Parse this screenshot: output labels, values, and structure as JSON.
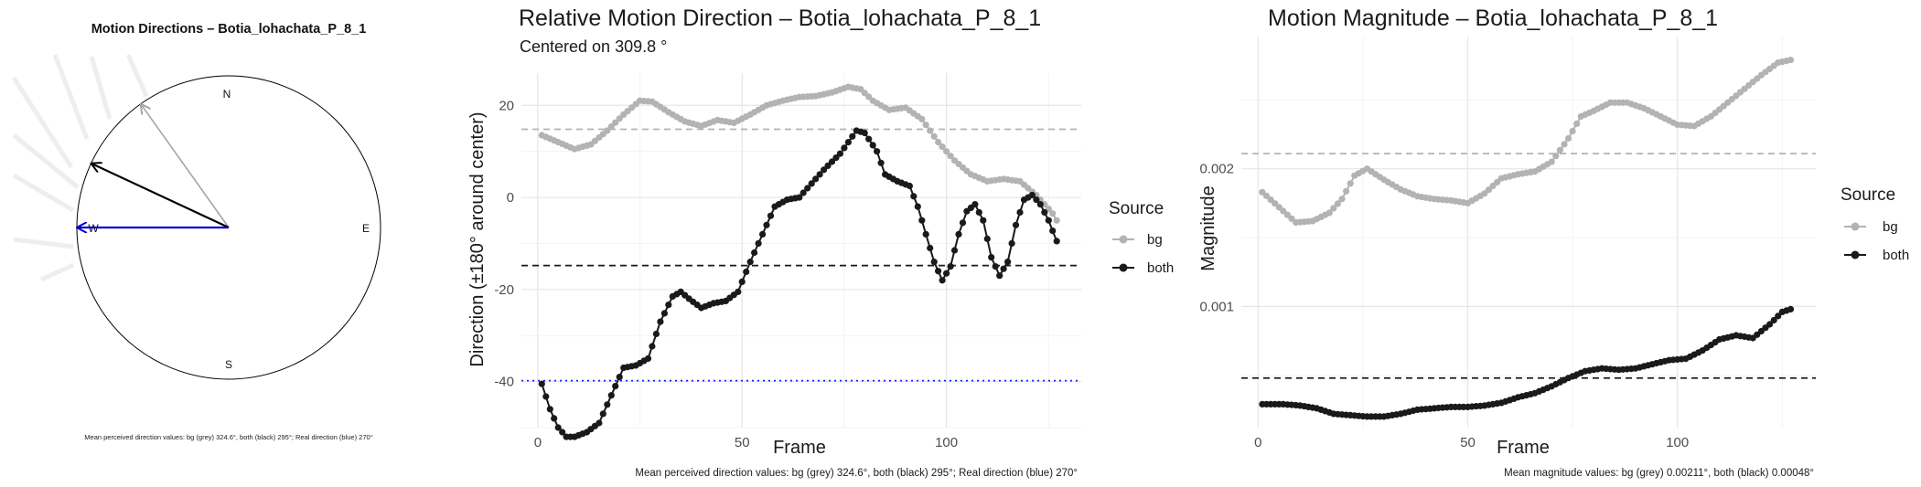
{
  "colors": {
    "bg": "#b3b3b3",
    "both": "#1a1a1a",
    "real": "#0000cc",
    "grid": "#ebebeb"
  },
  "compass": {
    "title": "Motion Directions – Botia_lohachata_P_8_1",
    "cardinals": {
      "north": "N",
      "east": "E",
      "south": "S",
      "west": "W"
    },
    "arrows": [
      {
        "name": "bg",
        "direction_deg": 324.6,
        "color": "#a6a6a6"
      },
      {
        "name": "both",
        "direction_deg": 295,
        "color": "#000000"
      },
      {
        "name": "real",
        "direction_deg": 270,
        "color": "#0000cc"
      }
    ],
    "caption": "Mean perceived direction values: bg (grey) 324.6°, both (black) 295°; Real direction (blue) 270°"
  },
  "chart_data": [
    {
      "type": "line",
      "title": "Relative Motion Direction – Botia_lohachata_P_8_1",
      "subtitle": "Centered on  309.8 °",
      "xlabel": "Frame",
      "ylabel": "Direction (±180° around center)",
      "xlim": [
        -4,
        133
      ],
      "ylim": [
        -50,
        27
      ],
      "xticks": [
        0,
        50,
        100
      ],
      "yticks": [
        -40,
        -20,
        0,
        20
      ],
      "grid": true,
      "legend": {
        "title": "Source",
        "position": "right",
        "entries": [
          "bg",
          "both"
        ]
      },
      "hlines": [
        {
          "series": "bg",
          "y": 14.8,
          "style": "dashed"
        },
        {
          "series": "both",
          "y": -14.8,
          "style": "dashed"
        },
        {
          "series": "real",
          "y": -39.8,
          "style": "dotted"
        }
      ],
      "series": [
        {
          "name": "bg",
          "points": [
            [
              1,
              13.5
            ],
            [
              5,
              12
            ],
            [
              9,
              10.5
            ],
            [
              13,
              11.5
            ],
            [
              17,
              14.5
            ],
            [
              21,
              18
            ],
            [
              25,
              21
            ],
            [
              28,
              20.8
            ],
            [
              32,
              18.5
            ],
            [
              36,
              16.5
            ],
            [
              40,
              15.5
            ],
            [
              44,
              16.8
            ],
            [
              48,
              16.2
            ],
            [
              52,
              18
            ],
            [
              56,
              20
            ],
            [
              60,
              21
            ],
            [
              64,
              21.8
            ],
            [
              68,
              22
            ],
            [
              72,
              22.8
            ],
            [
              76,
              24
            ],
            [
              79,
              23.5
            ],
            [
              82,
              21
            ],
            [
              86,
              19
            ],
            [
              90,
              19.5
            ],
            [
              94,
              17
            ],
            [
              98,
              12
            ],
            [
              102,
              8
            ],
            [
              106,
              5
            ],
            [
              110,
              3.5
            ],
            [
              114,
              4
            ],
            [
              118,
              3.5
            ],
            [
              122,
              0.5
            ],
            [
              126,
              -3.5
            ],
            [
              127,
              -5
            ]
          ]
        },
        {
          "name": "both",
          "points": [
            [
              1,
              -40.5
            ],
            [
              3,
              -46
            ],
            [
              5,
              -50
            ],
            [
              7,
              -52
            ],
            [
              9,
              -52
            ],
            [
              12,
              -51
            ],
            [
              15,
              -49
            ],
            [
              18,
              -43
            ],
            [
              21,
              -37
            ],
            [
              24,
              -36.5
            ],
            [
              27,
              -35
            ],
            [
              30,
              -27
            ],
            [
              33,
              -21.5
            ],
            [
              35,
              -20.5
            ],
            [
              37,
              -22
            ],
            [
              40,
              -24
            ],
            [
              43,
              -23
            ],
            [
              46,
              -22.5
            ],
            [
              49,
              -20.5
            ],
            [
              52,
              -14
            ],
            [
              55,
              -8
            ],
            [
              58,
              -2
            ],
            [
              61,
              -0.5
            ],
            [
              64,
              0
            ],
            [
              67,
              3
            ],
            [
              70,
              6
            ],
            [
              74,
              9.5
            ],
            [
              78,
              14.5
            ],
            [
              80,
              14
            ],
            [
              83,
              10
            ],
            [
              85,
              5
            ],
            [
              88,
              3.5
            ],
            [
              91,
              2.5
            ],
            [
              93,
              -2
            ],
            [
              95,
              -8
            ],
            [
              97,
              -14
            ],
            [
              99,
              -18
            ],
            [
              101,
              -15
            ],
            [
              103,
              -8
            ],
            [
              105,
              -3
            ],
            [
              107,
              -1.5
            ],
            [
              109,
              -5
            ],
            [
              111,
              -13
            ],
            [
              113,
              -17
            ],
            [
              115,
              -14
            ],
            [
              117,
              -6
            ],
            [
              119,
              -0.5
            ],
            [
              121,
              0.5
            ],
            [
              123,
              -1.5
            ],
            [
              125,
              -5
            ],
            [
              127,
              -9.5
            ]
          ]
        }
      ],
      "caption": "Mean perceived direction values: bg (grey) 324.6°, both (black) 295°; Real direction (blue) 270°"
    },
    {
      "type": "line",
      "title": "Motion Magnitude – Botia_lohachata_P_8_1",
      "xlabel": "Frame",
      "ylabel": "Magnitude",
      "xlim": [
        -4,
        133
      ],
      "ylim": [
        0.00012,
        0.00296
      ],
      "xticks": [
        0,
        50,
        100
      ],
      "yticks": [
        0.001,
        0.002
      ],
      "ytick_labels": [
        "0.001",
        "0.002"
      ],
      "grid": true,
      "legend": {
        "title": "Source",
        "position": "right",
        "entries": [
          "bg",
          "both"
        ]
      },
      "hlines": [
        {
          "series": "bg",
          "y": 0.00211,
          "style": "dashed"
        },
        {
          "series": "both",
          "y": 0.00048,
          "style": "dashed"
        }
      ],
      "series": [
        {
          "name": "bg",
          "points": [
            [
              1,
              0.00183
            ],
            [
              5,
              0.00172
            ],
            [
              9,
              0.00161
            ],
            [
              13,
              0.00162
            ],
            [
              17,
              0.00168
            ],
            [
              20,
              0.00178
            ],
            [
              23,
              0.00195
            ],
            [
              26,
              0.002
            ],
            [
              30,
              0.00192
            ],
            [
              34,
              0.00185
            ],
            [
              38,
              0.0018
            ],
            [
              42,
              0.00178
            ],
            [
              46,
              0.00177
            ],
            [
              50,
              0.00175
            ],
            [
              54,
              0.00182
            ],
            [
              58,
              0.00193
            ],
            [
              62,
              0.00196
            ],
            [
              66,
              0.00198
            ],
            [
              70,
              0.00205
            ],
            [
              74,
              0.00222
            ],
            [
              77,
              0.00238
            ],
            [
              80,
              0.00242
            ],
            [
              84,
              0.00248
            ],
            [
              88,
              0.00248
            ],
            [
              92,
              0.00244
            ],
            [
              96,
              0.00238
            ],
            [
              100,
              0.00232
            ],
            [
              104,
              0.00231
            ],
            [
              108,
              0.00238
            ],
            [
              112,
              0.00248
            ],
            [
              116,
              0.00258
            ],
            [
              120,
              0.00268
            ],
            [
              124,
              0.00277
            ],
            [
              127,
              0.00279
            ]
          ]
        },
        {
          "name": "both",
          "points": [
            [
              1,
              0.00029
            ],
            [
              6,
              0.00029
            ],
            [
              10,
              0.00028
            ],
            [
              14,
              0.00026
            ],
            [
              18,
              0.00022
            ],
            [
              22,
              0.00021
            ],
            [
              26,
              0.0002
            ],
            [
              30,
              0.0002
            ],
            [
              34,
              0.00022
            ],
            [
              38,
              0.00025
            ],
            [
              42,
              0.00026
            ],
            [
              46,
              0.00027
            ],
            [
              50,
              0.00027
            ],
            [
              54,
              0.00028
            ],
            [
              58,
              0.0003
            ],
            [
              62,
              0.00034
            ],
            [
              66,
              0.00037
            ],
            [
              70,
              0.00042
            ],
            [
              74,
              0.00048
            ],
            [
              78,
              0.00053
            ],
            [
              82,
              0.00055
            ],
            [
              86,
              0.00054
            ],
            [
              90,
              0.00055
            ],
            [
              94,
              0.00058
            ],
            [
              98,
              0.00061
            ],
            [
              102,
              0.00062
            ],
            [
              106,
              0.00068
            ],
            [
              110,
              0.00076
            ],
            [
              114,
              0.00079
            ],
            [
              118,
              0.00077
            ],
            [
              122,
              0.00087
            ],
            [
              125,
              0.00096
            ],
            [
              127,
              0.00098
            ]
          ]
        }
      ],
      "caption": "Mean magnitude values: bg (grey) 0.00211°, both (black) 0.00048°"
    }
  ]
}
